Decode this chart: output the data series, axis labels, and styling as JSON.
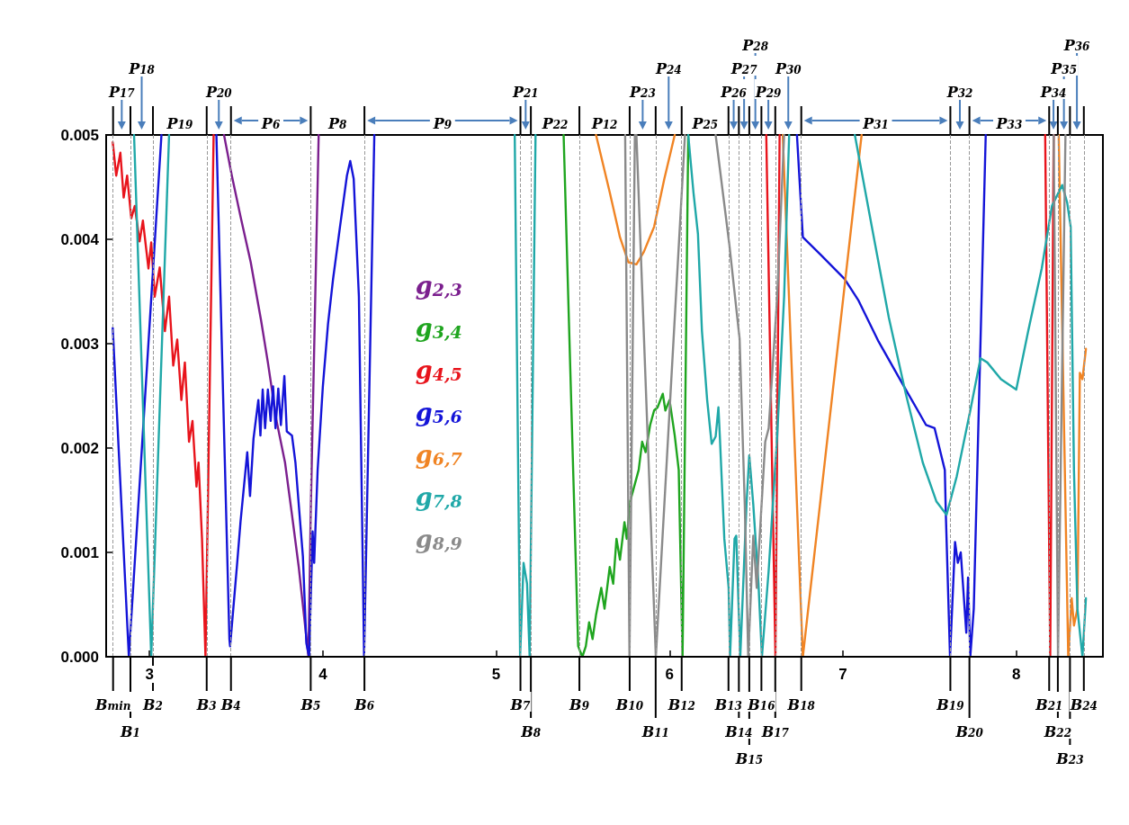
{
  "chart_data": {
    "type": "line",
    "xlim": [
      2.75,
      8.5
    ],
    "xticks": [
      3,
      4,
      5,
      6,
      7,
      8
    ],
    "ylim": [
      0,
      0.005
    ],
    "yticks": [
      {
        "value": 0,
        "label": "0.000"
      },
      {
        "value": 0.001,
        "label": "0.001"
      },
      {
        "value": 0.002,
        "label": "0.002"
      },
      {
        "value": 0.003,
        "label": "0.003"
      },
      {
        "value": 0.004,
        "label": "0.004"
      },
      {
        "value": 0.005,
        "label": "0.005"
      }
    ],
    "grid": false,
    "legend": "left",
    "marker": "none",
    "line_style": "solid",
    "series": [
      {
        "name": "g$_{2,3}$",
        "color": "#7b1f8e",
        "x": [
          3.43,
          3.475,
          3.525,
          3.584,
          3.644,
          3.683,
          3.733,
          3.782,
          3.822,
          3.861,
          3.891,
          3.917,
          3.931,
          3.976
        ],
        "values": [
          0.005,
          0.00461,
          0.00422,
          0.00378,
          0.00322,
          0.00282,
          0.00226,
          0.00186,
          0.00136,
          0.00086,
          0.0004,
          0,
          0.00146,
          0.005
        ]
      },
      {
        "name": "g$_{3,4}$",
        "color": "#1fa51f",
        "x": [
          5.389,
          5.473,
          5.497,
          5.517,
          5.536,
          5.556,
          5.576,
          5.606,
          5.625,
          5.655,
          5.675,
          5.694,
          5.714,
          5.74,
          5.753,
          5.773,
          5.822,
          5.842,
          5.862,
          5.888,
          5.911,
          5.931,
          5.961,
          5.976,
          6.0,
          6.03,
          6.053,
          6.075,
          6.108
        ],
        "values": [
          0.005,
          0.0001,
          0,
          0.0001,
          0.00033,
          0.00017,
          0.0004,
          0.00066,
          0.00046,
          0.00086,
          0.0007,
          0.00113,
          0.00093,
          0.00129,
          0.00113,
          0.00149,
          0.00179,
          0.00206,
          0.00196,
          0.00222,
          0.00236,
          0.00239,
          0.00252,
          0.00236,
          0.00246,
          0.00212,
          0.00179,
          0,
          0.005
        ]
      },
      {
        "name": "g$_{4,5}$",
        "color": "#e8141c",
        "x": [
          2.788,
          2.808,
          2.832,
          2.851,
          2.871,
          2.895,
          2.915,
          2.943,
          2.962,
          2.994,
          3.01,
          3.03,
          3.059,
          3.089,
          3.113,
          3.137,
          3.16,
          3.184,
          3.204,
          3.228,
          3.248,
          3.271,
          3.283,
          3.303,
          3.323,
          3.37,
          null,
          6.558,
          6.611,
          6.635,
          null,
          8.167,
          8.196,
          8.216
        ],
        "values": [
          0.00493,
          0.00461,
          0.00483,
          0.0044,
          0.00461,
          0.0042,
          0.00432,
          0.00398,
          0.00418,
          0.00372,
          0.00397,
          0.00345,
          0.00373,
          0.00312,
          0.00345,
          0.00279,
          0.00304,
          0.00246,
          0.00282,
          0.00206,
          0.00226,
          0.00163,
          0.00186,
          0.00113,
          0,
          0.005,
          null,
          0.005,
          0,
          0.005,
          null,
          0.005,
          0,
          0.005
        ]
      },
      {
        "name": "g$_{5,6}$",
        "color": "#1414d8",
        "x": [
          2.788,
          2.881,
          3.069,
          null,
          3.386,
          3.461,
          3.465,
          3.505,
          3.525,
          3.564,
          3.58,
          3.6,
          3.628,
          3.64,
          3.653,
          3.667,
          3.683,
          3.699,
          3.713,
          3.727,
          3.743,
          3.758,
          3.778,
          3.792,
          3.822,
          3.842,
          3.861,
          3.885,
          3.905,
          3.921,
          3.941,
          3.95,
          3.97,
          4.0,
          4.03,
          4.059,
          4.099,
          4.139,
          4.158,
          4.178,
          4.208,
          4.238,
          4.297,
          null,
          6.735,
          6.769,
          6.873,
          7.01,
          7.088,
          7.206,
          7.363,
          7.48,
          7.529,
          7.588,
          7.594,
          7.618,
          7.647,
          7.663,
          7.68,
          7.712,
          7.722,
          7.735,
          7.755,
          7.824
        ],
        "values": [
          0.00315,
          0,
          0.005,
          null,
          0.005,
          0.00017,
          0.0001,
          0.00088,
          0.00129,
          0.00196,
          0.00154,
          0.00209,
          0.00246,
          0.00212,
          0.00256,
          0.00219,
          0.00256,
          0.00226,
          0.00259,
          0.00219,
          0.00257,
          0.00222,
          0.00269,
          0.00216,
          0.00212,
          0.00186,
          0.00146,
          0.00096,
          0.00013,
          0,
          0.0012,
          0.0009,
          0.00179,
          0.00259,
          0.00319,
          0.00362,
          0.00412,
          0.00461,
          0.00475,
          0.00458,
          0.00345,
          0,
          0.005,
          null,
          0.005,
          0.00402,
          0.00385,
          0.00362,
          0.00342,
          0.00302,
          0.00256,
          0.00222,
          0.00219,
          0.00179,
          0.00136,
          0,
          0.0011,
          0.0009,
          0.001,
          0.00023,
          0.00076,
          0,
          0.00046,
          0.005
        ]
      },
      {
        "name": "g$_{6,7}$",
        "color": "#f08424",
        "x": [
          5.576,
          5.655,
          5.714,
          5.763,
          5.809,
          5.852,
          5.911,
          5.97,
          6.03,
          null,
          6.653,
          6.769,
          7.108,
          null,
          8.245,
          8.3,
          8.32,
          8.333,
          8.353,
          8.367,
          8.382,
          8.402
        ],
        "values": [
          0.005,
          0.00445,
          0.00402,
          0.00378,
          0.00376,
          0.00388,
          0.00412,
          0.00458,
          0.005,
          null,
          0.005,
          0,
          0.005,
          null,
          0.005,
          0,
          0.00056,
          0.0003,
          0.00046,
          0.00272,
          0.00266,
          0.00295
        ]
      },
      {
        "name": "g$_{7,8}$",
        "color": "#20a8a8",
        "x": [
          2.911,
          3.01,
          3.113,
          null,
          5.107,
          5.138,
          5.158,
          5.178,
          5.193,
          5.227,
          null,
          6.108,
          6.138,
          6.164,
          6.187,
          6.217,
          6.243,
          6.266,
          6.282,
          6.29,
          6.316,
          6.341,
          6.349,
          6.375,
          6.385,
          6.408,
          6.444,
          6.46,
          6.483,
          6.513,
          6.533,
          6.572,
          6.621,
          6.661,
          6.69,
          null,
          7.069,
          7.167,
          7.265,
          7.363,
          7.461,
          7.539,
          7.598,
          7.657,
          7.735,
          7.794,
          7.833,
          7.912,
          8.0,
          8.069,
          8.147,
          8.206,
          8.265,
          8.294,
          8.314,
          8.333,
          8.353,
          8.382,
          8.402
        ],
        "values": [
          0.005,
          0,
          0.005,
          null,
          0.005,
          0,
          0.0009,
          0.0007,
          0,
          0.005,
          null,
          0.005,
          0.00445,
          0.00405,
          0.00312,
          0.00246,
          0.00204,
          0.00211,
          0.00239,
          0.00212,
          0.00113,
          0.00066,
          0,
          0.00113,
          0.00116,
          0,
          0.00146,
          0.00193,
          0.00146,
          0.0007,
          0,
          0.00083,
          0.00212,
          0.00345,
          0.005,
          null,
          0.005,
          0.00412,
          0.00325,
          0.00252,
          0.00186,
          0.00149,
          0.00136,
          0.00173,
          0.00236,
          0.00286,
          0.00282,
          0.00266,
          0.00256,
          0.00312,
          0.00372,
          0.00432,
          0.00452,
          0.00435,
          0.00412,
          0.00179,
          0.00046,
          0,
          0.00056
        ]
      },
      {
        "name": "g$_{8,9}$",
        "color": "#8a8a8a",
        "x": [
          5.744,
          5.769,
          5.8,
          null,
          5.809,
          5.921,
          6.089,
          null,
          6.266,
          6.345,
          6.404,
          6.434,
          6.454,
          6.483,
          6.503,
          6.552,
          6.572,
          6.621,
          6.661,
          null,
          8.216,
          8.241,
          8.284
        ],
        "values": [
          0.005,
          0,
          0.005,
          null,
          0.005,
          0,
          0.005,
          null,
          0.005,
          0.00395,
          0.00305,
          0.00146,
          0,
          0.00116,
          0.00066,
          0.00206,
          0.00219,
          0.00345,
          0.005,
          null,
          0.005,
          0,
          0.005
        ]
      }
    ],
    "ref_lines": [
      {
        "axis": "x",
        "value": 2.79,
        "label": "B$_{min}$",
        "color": "#999999",
        "line_style": "dashed"
      },
      {
        "axis": "x",
        "value": 2.89,
        "label": "B$_{1}$",
        "color": "#999999",
        "line_style": "dashed"
      },
      {
        "axis": "x",
        "value": 3.02,
        "label": "B$_{2}$",
        "color": "#999999",
        "line_style": "dashed"
      },
      {
        "axis": "x",
        "value": 3.33,
        "label": "B$_{3}$",
        "color": "#999999",
        "line_style": "dashed"
      },
      {
        "axis": "x",
        "value": 3.47,
        "label": "B$_{4}$",
        "color": "#999999",
        "line_style": "dashed"
      },
      {
        "axis": "x",
        "value": 3.93,
        "label": "B$_{5}$",
        "color": "#999999",
        "line_style": "dashed"
      },
      {
        "axis": "x",
        "value": 4.24,
        "label": "B$_{6}$",
        "color": "#999999",
        "line_style": "dashed"
      },
      {
        "axis": "x",
        "value": 5.14,
        "label": "B$_{7}$",
        "color": "#999999",
        "line_style": "dashed"
      },
      {
        "axis": "x",
        "value": 5.2,
        "label": "B$_{8}$",
        "color": "#999999",
        "line_style": "dashed"
      },
      {
        "axis": "x",
        "value": 5.48,
        "label": "B$_{9}$",
        "color": "#999999",
        "line_style": "dashed"
      },
      {
        "axis": "x",
        "value": 5.77,
        "label": "B$_{10}$",
        "color": "#999999",
        "line_style": "dashed"
      },
      {
        "axis": "x",
        "value": 5.92,
        "label": "B$_{11}$",
        "color": "#999999",
        "line_style": "dashed"
      },
      {
        "axis": "x",
        "value": 6.07,
        "label": "B$_{12}$",
        "color": "#999999",
        "line_style": "dashed"
      },
      {
        "axis": "x",
        "value": 6.34,
        "label": "B$_{13}$",
        "color": "#999999",
        "line_style": "dashed"
      },
      {
        "axis": "x",
        "value": 6.4,
        "label": "B$_{14}$",
        "color": "#999999",
        "line_style": "dashed"
      },
      {
        "axis": "x",
        "value": 6.46,
        "label": "B$_{15}$",
        "color": "#999999",
        "line_style": "dashed"
      },
      {
        "axis": "x",
        "value": 6.53,
        "label": "B$_{16}$",
        "color": "#999999",
        "line_style": "dashed"
      },
      {
        "axis": "x",
        "value": 6.61,
        "label": "B$_{17}$",
        "color": "#999999",
        "line_style": "dashed"
      },
      {
        "axis": "x",
        "value": 6.76,
        "label": "B$_{18}$",
        "color": "#999999",
        "line_style": "dashed"
      },
      {
        "axis": "x",
        "value": 7.62,
        "label": "B$_{19}$",
        "color": "#999999",
        "line_style": "dashed"
      },
      {
        "axis": "x",
        "value": 7.73,
        "label": "B$_{20}$",
        "color": "#999999",
        "line_style": "dashed"
      },
      {
        "axis": "x",
        "value": 8.19,
        "label": "B$_{21}$",
        "color": "#999999",
        "line_style": "dashed"
      },
      {
        "axis": "x",
        "value": 8.24,
        "label": "B$_{22}$",
        "color": "#999999",
        "line_style": "dashed"
      },
      {
        "axis": "x",
        "value": 8.31,
        "label": "B$_{23}$",
        "color": "#999999",
        "line_style": "dashed"
      },
      {
        "axis": "x",
        "value": 8.39,
        "label": "B$_{24}$",
        "color": "#999999",
        "line_style": "dashed"
      }
    ],
    "annotations": [
      "P$_{17}$",
      "P$_{18}$",
      "P$_{19}$",
      "P$_{20}$",
      "P$_{6}$",
      "P$_{8}$",
      "P$_{9}$",
      "P$_{21}$",
      "P$_{22}$",
      "P$_{12}$",
      "P$_{23}$",
      "P$_{24}$",
      "P$_{25}$",
      "P$_{26}$",
      "P$_{27}$",
      "P$_{28}$",
      "P$_{29}$",
      "P$_{30}$",
      "P$_{31}$",
      "P$_{32}$",
      "P$_{33}$",
      "P$_{34}$",
      "P$_{35}$",
      "P$_{36}$"
    ]
  }
}
